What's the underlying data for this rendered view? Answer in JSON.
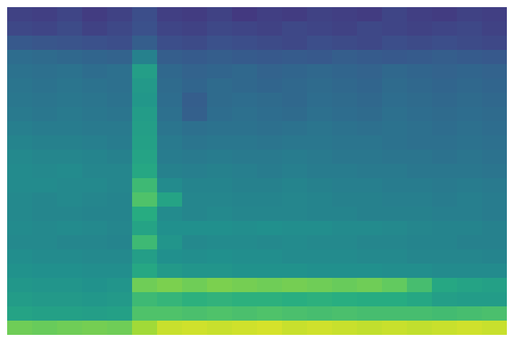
{
  "chart_data": {
    "type": "heatmap",
    "tick_labels": false,
    "color_range": [
      0,
      100
    ],
    "cells": [
      [
        20,
        19,
        21,
        18,
        20,
        24,
        19,
        18,
        20,
        17,
        19,
        18,
        20,
        19,
        18,
        21,
        19,
        18,
        20,
        19
      ],
      [
        22,
        21,
        23,
        20,
        22,
        25,
        21,
        20,
        22,
        21,
        20,
        22,
        21,
        20,
        22,
        21,
        20,
        21,
        22,
        20
      ],
      [
        28,
        27,
        26,
        25,
        24,
        30,
        24,
        23,
        25,
        24,
        23,
        22,
        24,
        23,
        22,
        24,
        23,
        24,
        23,
        22
      ],
      [
        36,
        35,
        34,
        33,
        32,
        44,
        30,
        29,
        30,
        29,
        28,
        29,
        28,
        30,
        29,
        28,
        29,
        30,
        29,
        28
      ],
      [
        38,
        37,
        38,
        36,
        37,
        56,
        34,
        32,
        33,
        34,
        32,
        33,
        34,
        33,
        32,
        34,
        33,
        32,
        33,
        32
      ],
      [
        39,
        38,
        39,
        38,
        37,
        54,
        35,
        33,
        35,
        34,
        33,
        34,
        35,
        34,
        33,
        35,
        34,
        33,
        34,
        33
      ],
      [
        40,
        39,
        40,
        39,
        38,
        53,
        36,
        30,
        35,
        36,
        35,
        34,
        36,
        35,
        34,
        36,
        35,
        34,
        35,
        34
      ],
      [
        41,
        40,
        41,
        40,
        39,
        55,
        37,
        31,
        36,
        37,
        36,
        35,
        37,
        36,
        35,
        37,
        36,
        35,
        36,
        35
      ],
      [
        43,
        42,
        42,
        41,
        41,
        56,
        39,
        37,
        38,
        38,
        37,
        38,
        39,
        38,
        37,
        38,
        37,
        36,
        37,
        36
      ],
      [
        45,
        44,
        44,
        43,
        42,
        57,
        41,
        39,
        40,
        40,
        39,
        40,
        40,
        39,
        39,
        38,
        37,
        37,
        38,
        37
      ],
      [
        47,
        46,
        46,
        45,
        44,
        58,
        42,
        41,
        42,
        41,
        41,
        42,
        41,
        40,
        40,
        39,
        39,
        38,
        39,
        38
      ],
      [
        48,
        47,
        48,
        46,
        46,
        60,
        44,
        43,
        44,
        43,
        42,
        43,
        42,
        42,
        41,
        41,
        40,
        40,
        40,
        39
      ],
      [
        48,
        48,
        47,
        47,
        46,
        68,
        48,
        45,
        45,
        44,
        44,
        45,
        44,
        43,
        43,
        42,
        42,
        41,
        42,
        41
      ],
      [
        47,
        46,
        47,
        46,
        45,
        72,
        58,
        46,
        46,
        45,
        45,
        46,
        45,
        44,
        44,
        43,
        43,
        42,
        43,
        42
      ],
      [
        47,
        46,
        46,
        45,
        45,
        62,
        48,
        46,
        47,
        46,
        46,
        46,
        45,
        45,
        44,
        44,
        44,
        43,
        43,
        42
      ],
      [
        48,
        47,
        48,
        47,
        46,
        58,
        50,
        50,
        50,
        49,
        50,
        49,
        49,
        48,
        48,
        47,
        46,
        45,
        45,
        44
      ],
      [
        47,
        47,
        46,
        46,
        45,
        68,
        52,
        47,
        48,
        48,
        47,
        48,
        47,
        47,
        46,
        46,
        45,
        45,
        44,
        44
      ],
      [
        49,
        48,
        48,
        47,
        47,
        56,
        50,
        49,
        50,
        49,
        49,
        48,
        48,
        48,
        47,
        47,
        46,
        46,
        46,
        45
      ],
      [
        51,
        50,
        50,
        49,
        49,
        60,
        54,
        52,
        52,
        51,
        51,
        51,
        50,
        50,
        50,
        49,
        49,
        48,
        48,
        48
      ],
      [
        53,
        52,
        52,
        51,
        52,
        78,
        80,
        78,
        80,
        79,
        78,
        79,
        78,
        77,
        78,
        76,
        70,
        60,
        58,
        57
      ],
      [
        55,
        54,
        54,
        53,
        54,
        68,
        66,
        64,
        65,
        64,
        64,
        63,
        64,
        63,
        62,
        62,
        60,
        56,
        55,
        55
      ],
      [
        58,
        57,
        57,
        56,
        57,
        72,
        72,
        71,
        72,
        71,
        72,
        71,
        70,
        71,
        70,
        70,
        70,
        69,
        70,
        71
      ],
      [
        78,
        77,
        78,
        79,
        78,
        86,
        92,
        93,
        92,
        93,
        94,
        92,
        93,
        92,
        91,
        92,
        91,
        92,
        93,
        92
      ]
    ]
  }
}
